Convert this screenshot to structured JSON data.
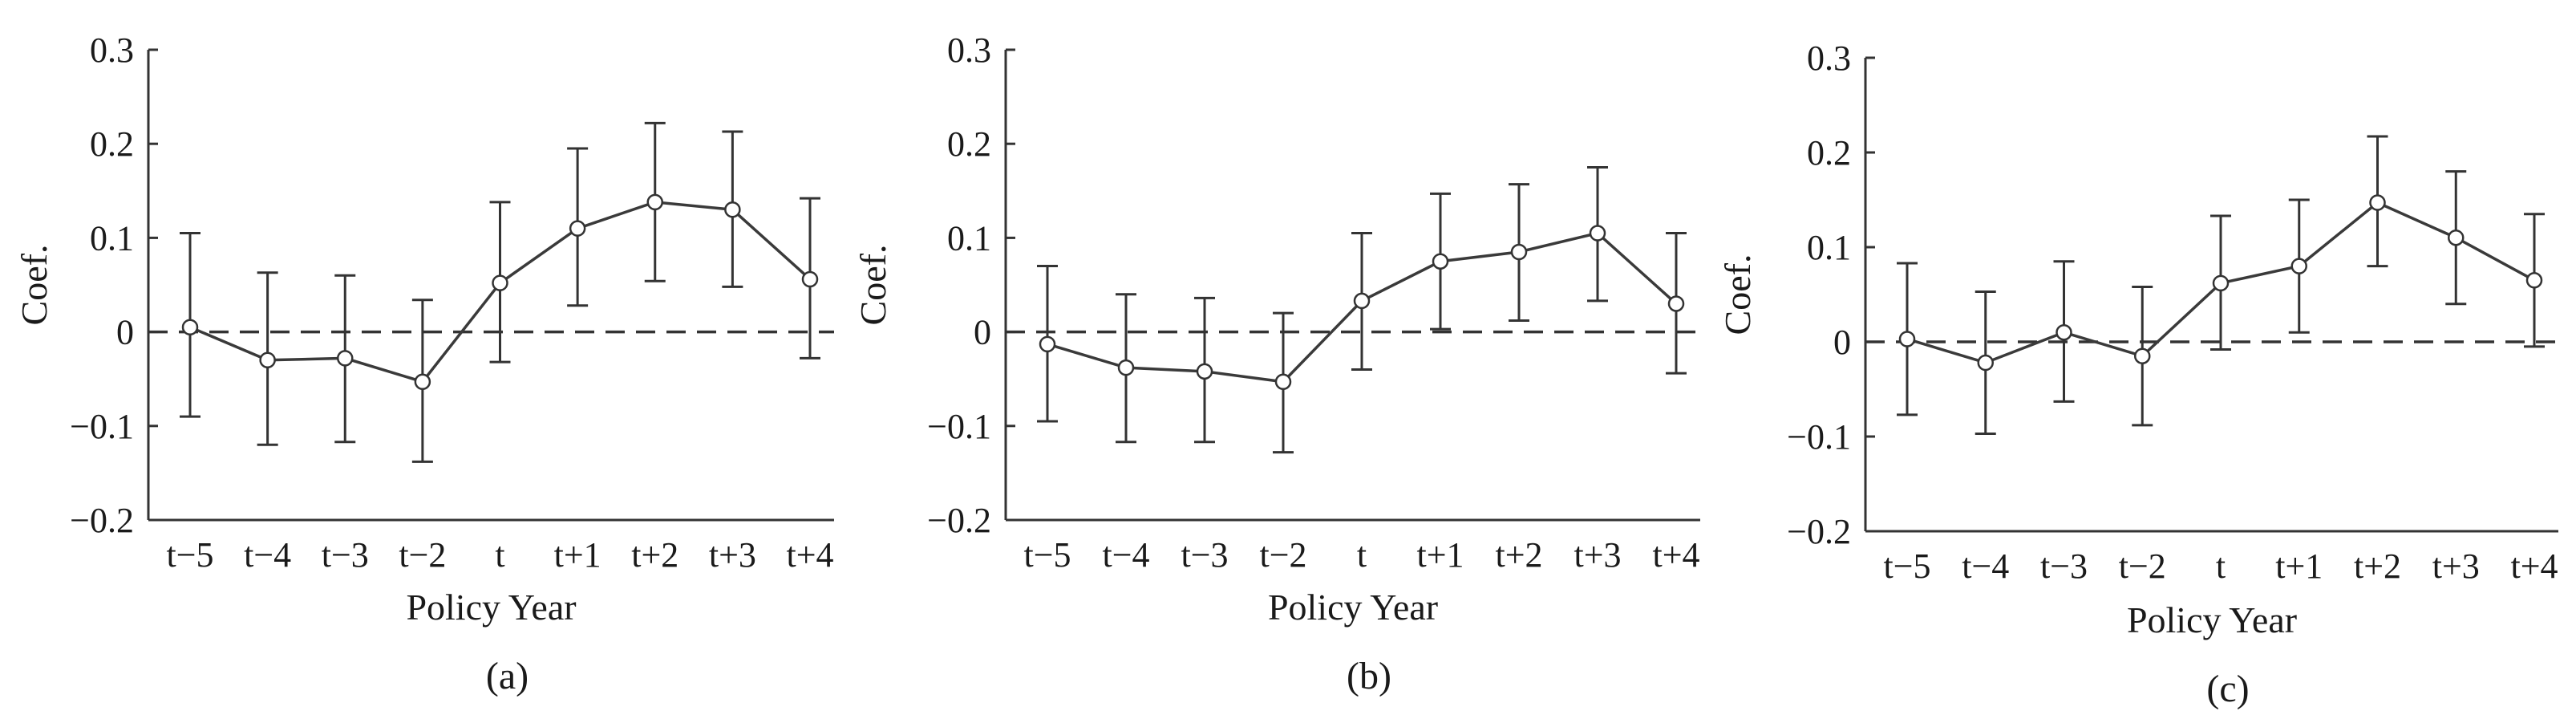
{
  "chart_data": [
    {
      "type": "line",
      "panel_label": "(a)",
      "xlabel": "Policy Year",
      "ylabel": "Coef.",
      "categories": [
        "t−5",
        "t−4",
        "t−3",
        "t−2",
        "t",
        "t+1",
        "t+2",
        "t+3",
        "t+4"
      ],
      "yticks": [
        "0.3",
        "0.2",
        "0.1",
        "0",
        "−0.1",
        "−0.2"
      ],
      "ylim": [
        -0.2,
        0.3
      ],
      "reference_line": 0,
      "series": [
        {
          "values": [
            0.005,
            -0.03,
            -0.028,
            -0.053,
            0.052,
            0.11,
            0.138,
            0.13,
            0.056
          ],
          "ci_low": [
            -0.09,
            -0.12,
            -0.117,
            -0.138,
            -0.032,
            0.028,
            0.054,
            0.048,
            -0.028
          ],
          "ci_high": [
            0.105,
            0.063,
            0.06,
            0.034,
            0.138,
            0.195,
            0.222,
            0.213,
            0.142
          ]
        }
      ]
    },
    {
      "type": "line",
      "panel_label": "(b)",
      "xlabel": "Policy Year",
      "ylabel": "Coef.",
      "categories": [
        "t−5",
        "t−4",
        "t−3",
        "t−2",
        "t",
        "t+1",
        "t+2",
        "t+3",
        "t+4"
      ],
      "yticks": [
        "0.3",
        "0.2",
        "0.1",
        "0",
        "−0.1",
        "−0.2"
      ],
      "ylim": [
        -0.2,
        0.3
      ],
      "reference_line": 0,
      "series": [
        {
          "values": [
            -0.013,
            -0.038,
            -0.042,
            -0.053,
            0.033,
            0.075,
            0.085,
            0.105,
            0.03
          ],
          "ci_low": [
            -0.095,
            -0.117,
            -0.117,
            -0.128,
            -0.04,
            0.003,
            0.012,
            0.033,
            -0.044
          ],
          "ci_high": [
            0.07,
            0.04,
            0.036,
            0.02,
            0.105,
            0.147,
            0.157,
            0.175,
            0.105
          ]
        }
      ]
    },
    {
      "type": "line",
      "panel_label": "(c)",
      "xlabel": "Policy Year",
      "ylabel": "Coef.",
      "categories": [
        "t−5",
        "t−4",
        "t−3",
        "t−2",
        "t",
        "t+1",
        "t+2",
        "t+3",
        "t+4"
      ],
      "yticks": [
        "0.3",
        "0.2",
        "0.1",
        "0",
        "−0.1",
        "−0.2"
      ],
      "ylim": [
        -0.2,
        0.3
      ],
      "reference_line": 0,
      "series": [
        {
          "values": [
            0.003,
            -0.022,
            0.01,
            -0.015,
            0.062,
            0.08,
            0.147,
            0.11,
            0.065
          ],
          "ci_low": [
            -0.077,
            -0.097,
            -0.063,
            -0.088,
            -0.008,
            0.01,
            0.08,
            0.04,
            -0.005
          ],
          "ci_high": [
            0.083,
            0.053,
            0.085,
            0.058,
            0.133,
            0.15,
            0.217,
            0.18,
            0.135
          ]
        }
      ]
    }
  ]
}
